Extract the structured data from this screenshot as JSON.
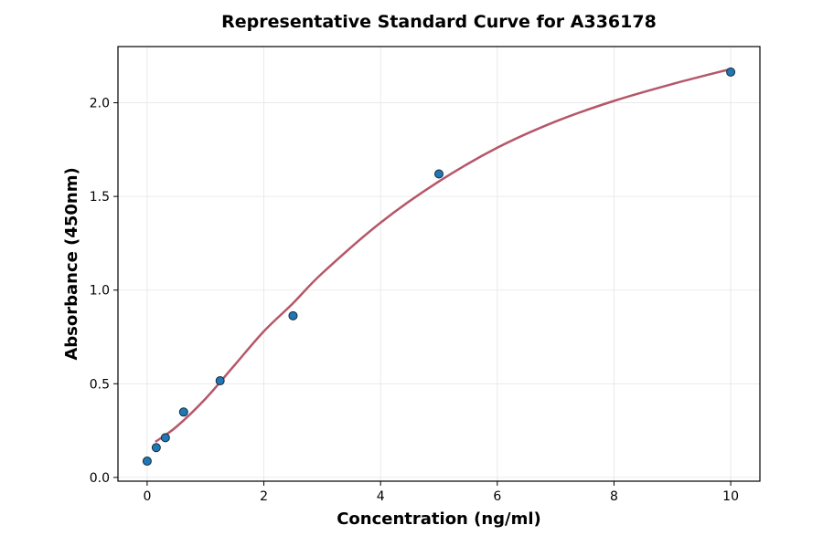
{
  "chart_data": {
    "type": "scatter",
    "title": "Representative Standard Curve for A336178",
    "xlabel": "Concentration (ng/ml)",
    "ylabel": "Absorbance (450nm)",
    "xlim": [
      -0.5,
      10.5
    ],
    "ylim": [
      -0.02,
      2.3
    ],
    "xticks": [
      0,
      2,
      4,
      6,
      8,
      10
    ],
    "yticks": [
      0.0,
      0.5,
      1.0,
      1.5,
      2.0
    ],
    "ytick_labels": [
      "0.0",
      "0.5",
      "1.0",
      "1.5",
      "2.0"
    ],
    "grid": true,
    "points": {
      "x": [
        0,
        0.156,
        0.3125,
        0.625,
        1.25,
        2.5,
        5,
        10
      ],
      "y": [
        0.087,
        0.159,
        0.212,
        0.349,
        0.516,
        0.863,
        1.62,
        2.164
      ],
      "color": "#1f77b4"
    },
    "fit_curve": {
      "x": [
        0.14,
        0.5,
        1,
        1.5,
        2,
        2.5,
        3,
        4,
        5,
        6,
        7,
        8,
        9,
        10
      ],
      "y": [
        0.19,
        0.27,
        0.42,
        0.6,
        0.78,
        0.93,
        1.09,
        1.36,
        1.58,
        1.76,
        1.9,
        2.01,
        2.1,
        2.18
      ],
      "color": "#b5576a"
    }
  }
}
